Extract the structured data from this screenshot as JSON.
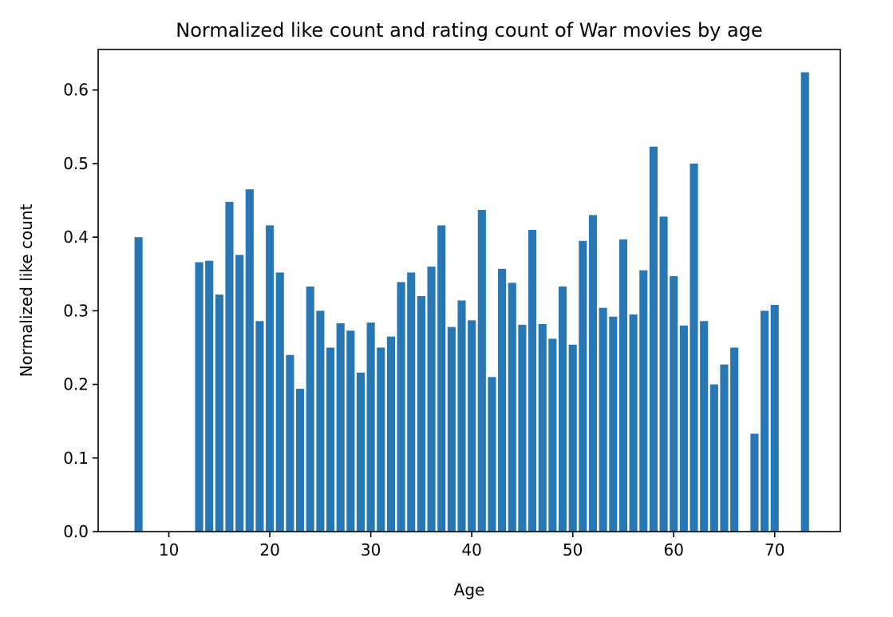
{
  "chart_data": {
    "type": "bar",
    "title": "Normalized like count and rating count of War movies by age",
    "xlabel": "Age",
    "ylabel": "Normalized like count",
    "xlim": [
      3,
      76.5
    ],
    "ylim": [
      0,
      0.655
    ],
    "xticks": [
      10,
      20,
      30,
      40,
      50,
      60,
      70
    ],
    "yticks": [
      0.0,
      0.1,
      0.2,
      0.3,
      0.4,
      0.5,
      0.6
    ],
    "ytick_labels": [
      "0.0",
      "0.1",
      "0.2",
      "0.3",
      "0.4",
      "0.5",
      "0.6"
    ],
    "grid": false,
    "bar_color": "#2677b4",
    "x": [
      7,
      13,
      14,
      15,
      16,
      17,
      18,
      19,
      20,
      21,
      22,
      23,
      24,
      25,
      26,
      27,
      28,
      29,
      30,
      31,
      32,
      33,
      34,
      35,
      36,
      37,
      38,
      39,
      40,
      41,
      42,
      43,
      44,
      45,
      46,
      47,
      48,
      49,
      50,
      51,
      52,
      53,
      54,
      55,
      56,
      57,
      58,
      59,
      60,
      61,
      62,
      63,
      64,
      65,
      66,
      68,
      69,
      70,
      73
    ],
    "values": [
      0.4,
      0.366,
      0.368,
      0.322,
      0.448,
      0.376,
      0.465,
      0.286,
      0.416,
      0.352,
      0.24,
      0.194,
      0.333,
      0.3,
      0.25,
      0.283,
      0.273,
      0.216,
      0.284,
      0.25,
      0.265,
      0.339,
      0.352,
      0.32,
      0.36,
      0.416,
      0.278,
      0.314,
      0.287,
      0.437,
      0.21,
      0.357,
      0.338,
      0.281,
      0.41,
      0.282,
      0.262,
      0.333,
      0.254,
      0.395,
      0.43,
      0.304,
      0.292,
      0.397,
      0.295,
      0.355,
      0.523,
      0.428,
      0.347,
      0.28,
      0.5,
      0.286,
      0.2,
      0.227,
      0.25,
      0.133,
      0.3,
      0.308,
      0.624
    ]
  }
}
